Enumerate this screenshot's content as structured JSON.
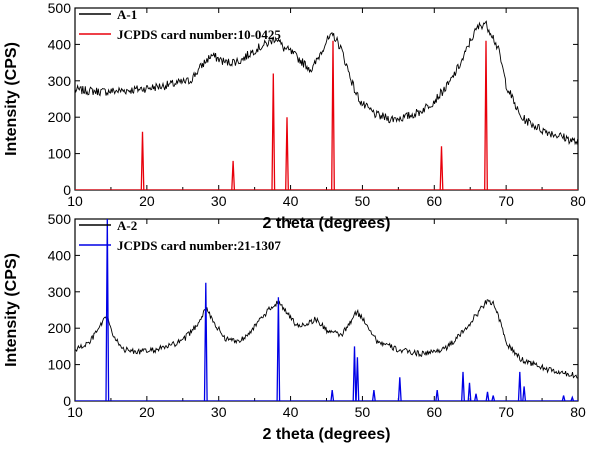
{
  "chart_data": [
    {
      "type": "line",
      "xlabel": "2 theta (degrees)",
      "ylabel": "Intensity (CPS)",
      "xlim": [
        10,
        80
      ],
      "ylim": [
        0,
        500
      ],
      "xticks": [
        "10",
        "20",
        "30",
        "40",
        "50",
        "60",
        "70",
        "80"
      ],
      "yticks": [
        "0",
        "100",
        "200",
        "300",
        "400",
        "500"
      ],
      "grid": false,
      "legend_position": "top-left",
      "series": [
        {
          "name": "A-1",
          "color": "#000000",
          "kind": "noisy-line",
          "noise": 12,
          "x": [
            10,
            14,
            18,
            22,
            26,
            28,
            29,
            31,
            33,
            35,
            37,
            38,
            39,
            40,
            42,
            43,
            44,
            45,
            46,
            47,
            48,
            49,
            50,
            52,
            54,
            56,
            58,
            60,
            62,
            64,
            65,
            66,
            67,
            68,
            69,
            70,
            72,
            75,
            78,
            80
          ],
          "y": [
            275,
            270,
            275,
            285,
            300,
            350,
            370,
            350,
            355,
            385,
            405,
            420,
            390,
            380,
            345,
            330,
            370,
            410,
            425,
            390,
            330,
            270,
            235,
            205,
            195,
            200,
            215,
            245,
            290,
            360,
            410,
            445,
            460,
            430,
            380,
            290,
            200,
            165,
            145,
            130
          ]
        },
        {
          "name": "JCPDS card number:10-0425",
          "color": "#e8000b",
          "kind": "peaks",
          "peaks": [
            {
              "x": 19.4,
              "y": 160
            },
            {
              "x": 32.0,
              "y": 80
            },
            {
              "x": 37.6,
              "y": 320
            },
            {
              "x": 39.5,
              "y": 200
            },
            {
              "x": 45.9,
              "y": 410
            },
            {
              "x": 61.0,
              "y": 120
            },
            {
              "x": 67.2,
              "y": 410
            }
          ]
        }
      ]
    },
    {
      "type": "line",
      "xlabel": "2 theta (degrees)",
      "ylabel": "Intensity (CPS)",
      "xlim": [
        10,
        80
      ],
      "ylim": [
        0,
        500
      ],
      "xticks": [
        "10",
        "20",
        "30",
        "40",
        "50",
        "60",
        "70",
        "80"
      ],
      "yticks": [
        "0",
        "100",
        "200",
        "300",
        "400",
        "500"
      ],
      "grid": false,
      "legend_position": "top-left",
      "series": [
        {
          "name": "A-2",
          "color": "#000000",
          "kind": "noisy-line",
          "noise": 8,
          "x": [
            10,
            12,
            13,
            14,
            14.6,
            15.3,
            17,
            19,
            21,
            23,
            25,
            27,
            28.2,
            29.5,
            31,
            33,
            35,
            37,
            38.4,
            39.5,
            41,
            42.5,
            43.5,
            45,
            47,
            48,
            49.2,
            50.5,
            52,
            55,
            58,
            60,
            62,
            64,
            66,
            67.5,
            68.5,
            70,
            72,
            74,
            76,
            78,
            80
          ],
          "y": [
            140,
            160,
            190,
            220,
            230,
            175,
            140,
            135,
            140,
            150,
            165,
            210,
            255,
            210,
            170,
            165,
            205,
            250,
            275,
            240,
            205,
            215,
            225,
            195,
            180,
            205,
            245,
            215,
            165,
            140,
            130,
            135,
            150,
            190,
            240,
            280,
            260,
            160,
            115,
            100,
            85,
            75,
            70
          ]
        },
        {
          "name": "JCPDS card number:21-1307",
          "color": "#0000e6",
          "kind": "peaks",
          "peaks": [
            {
              "x": 14.5,
              "y": 500
            },
            {
              "x": 28.2,
              "y": 325
            },
            {
              "x": 38.3,
              "y": 285
            },
            {
              "x": 45.8,
              "y": 30
            },
            {
              "x": 48.9,
              "y": 150
            },
            {
              "x": 49.3,
              "y": 120
            },
            {
              "x": 51.6,
              "y": 30
            },
            {
              "x": 55.2,
              "y": 65
            },
            {
              "x": 60.4,
              "y": 30
            },
            {
              "x": 64.0,
              "y": 80
            },
            {
              "x": 64.9,
              "y": 50
            },
            {
              "x": 65.8,
              "y": 20
            },
            {
              "x": 67.4,
              "y": 25
            },
            {
              "x": 68.2,
              "y": 15
            },
            {
              "x": 71.9,
              "y": 80
            },
            {
              "x": 72.5,
              "y": 40
            },
            {
              "x": 78.0,
              "y": 15
            },
            {
              "x": 79.2,
              "y": 10
            }
          ]
        }
      ]
    }
  ]
}
